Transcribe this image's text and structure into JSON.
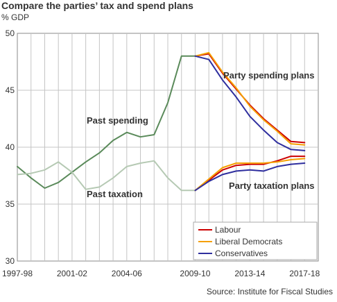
{
  "title": "Compare the parties’ tax and spend plans",
  "subtitle": "% GDP",
  "source": "Source: Institute for Fiscal Studies",
  "chart_data": {
    "type": "line",
    "x_tick_labels": [
      "1997-98",
      "2001-02",
      "2004-06",
      "2009-10",
      "2013-14",
      "2017-18"
    ],
    "x_tick_positions": [
      0,
      4,
      8,
      13,
      17,
      21
    ],
    "xlim": [
      0,
      22
    ],
    "ylim": [
      30,
      50
    ],
    "yticks": [
      30,
      35,
      40,
      45,
      50
    ],
    "grid": true,
    "legend_position": "bottom-right",
    "annotations": [
      "Past spending",
      "Past taxation",
      "Party spending plans",
      "Party taxation plans"
    ],
    "series": [
      {
        "name": "",
        "role": "past-spending",
        "color": "#5a8a5a",
        "x": [
          0,
          1,
          2,
          3,
          4,
          5,
          6,
          7,
          8,
          9,
          10,
          11,
          12,
          13
        ],
        "values": [
          38.3,
          37.3,
          36.4,
          36.9,
          37.8,
          38.7,
          39.5,
          40.6,
          41.3,
          40.9,
          41.1,
          43.9,
          48.0,
          48.0
        ]
      },
      {
        "name": "",
        "role": "past-taxation",
        "color": "#b5c9b3",
        "x": [
          0,
          1,
          2,
          3,
          4,
          5,
          6,
          7,
          8,
          9,
          10,
          11,
          12,
          13
        ],
        "values": [
          37.6,
          37.7,
          38.0,
          38.7,
          37.8,
          36.3,
          36.5,
          37.3,
          38.3,
          38.6,
          38.8,
          37.3,
          36.2,
          36.2
        ]
      },
      {
        "name": "Labour",
        "role": "spending",
        "color": "#cc0000",
        "x": [
          13,
          14,
          15,
          16,
          17,
          18,
          19,
          20,
          21
        ],
        "values": [
          48.0,
          48.2,
          46.5,
          45.1,
          43.7,
          42.5,
          41.5,
          40.5,
          40.4
        ]
      },
      {
        "name": "Liberal Democrats",
        "role": "spending",
        "color": "#f5a000",
        "x": [
          13,
          14,
          15,
          16,
          17,
          18,
          19,
          20,
          21
        ],
        "values": [
          48.0,
          48.3,
          46.6,
          45.2,
          43.6,
          42.4,
          41.4,
          40.3,
          40.2
        ]
      },
      {
        "name": "Conservatives",
        "role": "spending",
        "color": "#2e2e9e",
        "x": [
          13,
          14,
          15,
          16,
          17,
          18,
          19,
          20,
          21
        ],
        "values": [
          48.0,
          47.7,
          45.9,
          44.4,
          42.7,
          41.5,
          40.4,
          39.8,
          39.7
        ]
      },
      {
        "name": "Labour",
        "role": "taxation",
        "color": "#cc0000",
        "x": [
          13,
          14,
          15,
          16,
          17,
          18,
          19,
          20,
          21
        ],
        "values": [
          36.2,
          37.1,
          38.0,
          38.4,
          38.5,
          38.5,
          38.8,
          39.2,
          39.2
        ]
      },
      {
        "name": "Liberal Democrats",
        "role": "taxation",
        "color": "#f5a000",
        "x": [
          13,
          14,
          15,
          16,
          17,
          18,
          19,
          20,
          21
        ],
        "values": [
          36.2,
          37.2,
          38.2,
          38.6,
          38.6,
          38.6,
          38.7,
          38.9,
          39.0
        ]
      },
      {
        "name": "Conservatives",
        "role": "taxation",
        "color": "#2e2e9e",
        "x": [
          13,
          14,
          15,
          16,
          17,
          18,
          19,
          20,
          21
        ],
        "values": [
          36.2,
          37.0,
          37.6,
          37.9,
          38.0,
          37.9,
          38.3,
          38.5,
          38.6
        ]
      }
    ],
    "legend": [
      {
        "label": "Labour",
        "color": "#cc0000"
      },
      {
        "label": "Liberal Democrats",
        "color": "#f5a000"
      },
      {
        "label": "Conservatives",
        "color": "#2e2e9e"
      }
    ]
  }
}
